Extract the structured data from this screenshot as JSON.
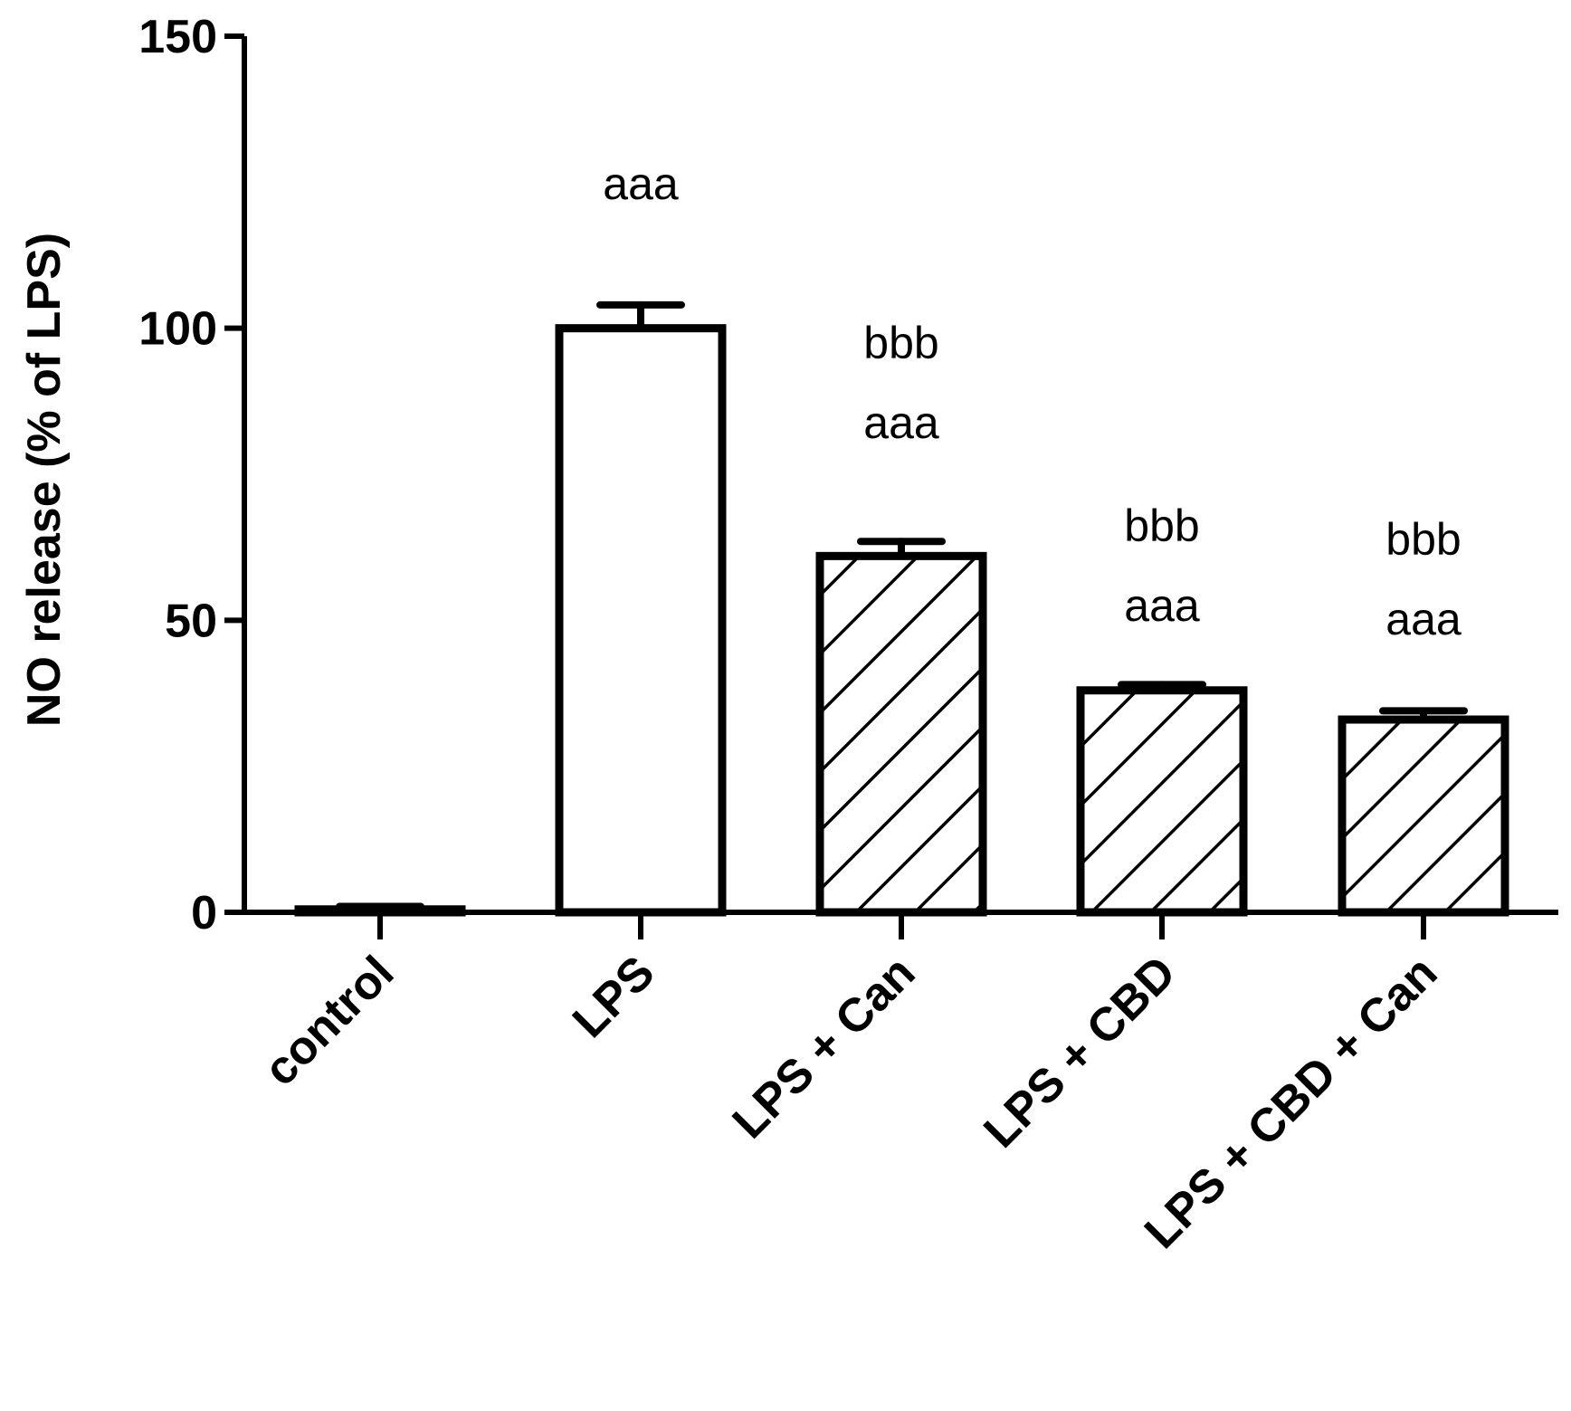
{
  "chart_data": {
    "type": "bar",
    "ylabel": "NO release (% of LPS)",
    "xlabel": "",
    "ylim": [
      0,
      150
    ],
    "yticks": [
      0,
      50,
      100,
      150
    ],
    "categories": [
      "control",
      "LPS",
      "LPS + Can",
      "LPS + CBD",
      "LPS + CBD + Can"
    ],
    "values": [
      0.5,
      100,
      61,
      38,
      33
    ],
    "errors": [
      0.5,
      4,
      2.5,
      1,
      1.5
    ],
    "fills": [
      "solid",
      "solid",
      "hatched",
      "hatched",
      "hatched"
    ],
    "annotations": [
      [],
      [
        "aaa"
      ],
      [
        "bbb",
        "aaa"
      ],
      [
        "bbb",
        "aaa"
      ],
      [
        "bbb",
        "aaa"
      ]
    ],
    "colors": {
      "stroke": "#000000",
      "fill": "#ffffff"
    },
    "grid": false,
    "legend": "none"
  }
}
